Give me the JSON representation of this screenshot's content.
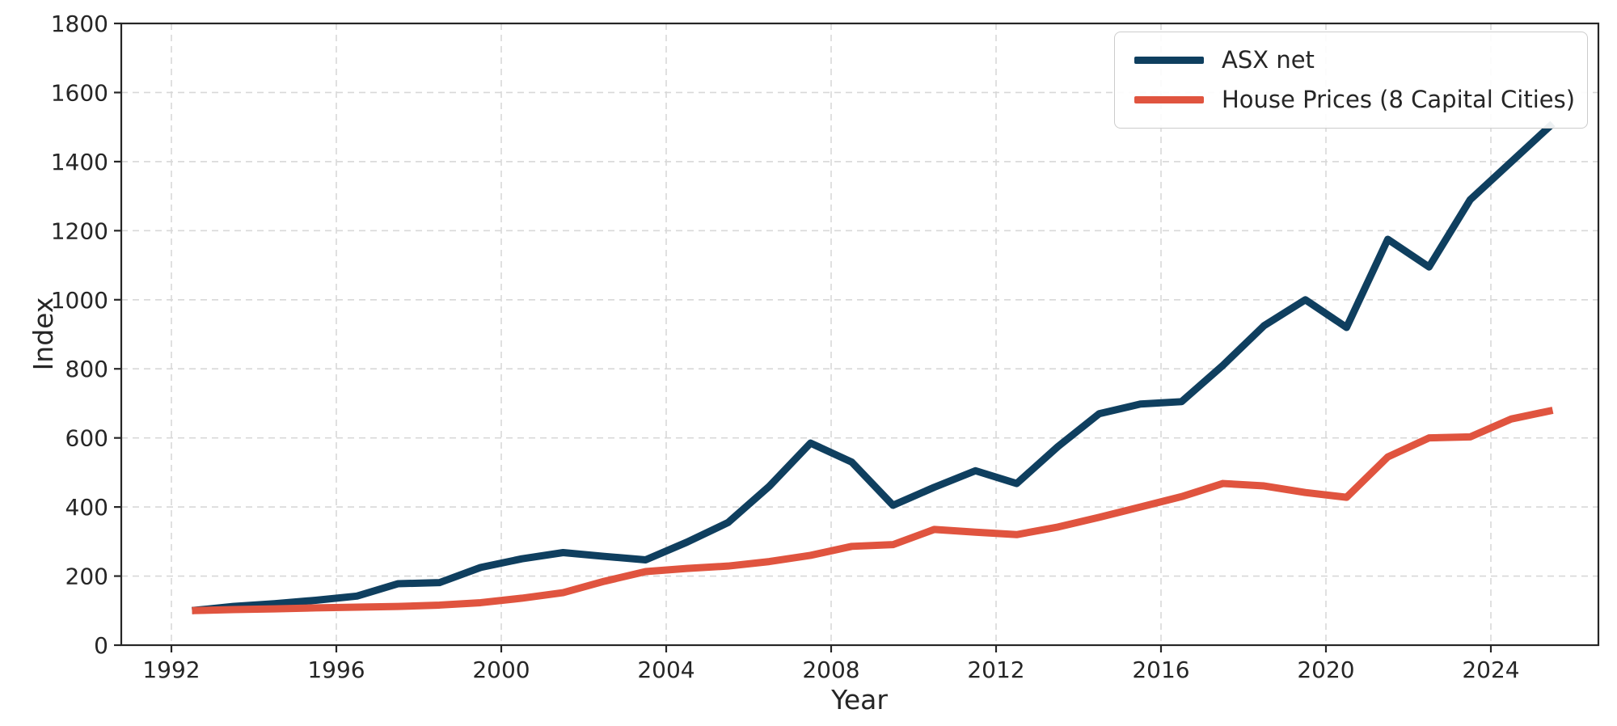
{
  "figure": {
    "background": "#ffffff",
    "grid_color": "#d8d8d8",
    "spine_color": "#262626",
    "text_color": "#262626"
  },
  "axes": {
    "x_title": "Year",
    "y_title": "Index",
    "x_tick_labels": [
      "1992",
      "1996",
      "2000",
      "2004",
      "2008",
      "2012",
      "2016",
      "2020",
      "2024"
    ],
    "y_tick_labels": [
      "0",
      "200",
      "400",
      "600",
      "800",
      "1000",
      "1200",
      "1400",
      "1600",
      "1800"
    ]
  },
  "legend": {
    "entries": [
      {
        "label": "ASX net",
        "color": "#0f3f5f"
      },
      {
        "label": "House Prices (8 Capital Cities)",
        "color": "#e0543f"
      }
    ]
  },
  "chart_data": {
    "type": "line",
    "title": "",
    "xlabel": "Year",
    "ylabel": "Index",
    "xlim": [
      1990.8,
      2026.6
    ],
    "ylim": [
      0,
      1800
    ],
    "x_ticks": [
      1992,
      1996,
      2000,
      2004,
      2008,
      2012,
      2016,
      2020,
      2024
    ],
    "y_ticks": [
      0,
      200,
      400,
      600,
      800,
      1000,
      1200,
      1400,
      1600,
      1800
    ],
    "grid": true,
    "legend_position": "upper right",
    "x": [
      1992.5,
      1993.5,
      1994.5,
      1995.5,
      1996.5,
      1997.5,
      1998.5,
      1999.5,
      2000.5,
      2001.5,
      2002.5,
      2003.5,
      2004.5,
      2005.5,
      2006.5,
      2007.5,
      2008.5,
      2009.5,
      2010.5,
      2011.5,
      2012.5,
      2013.5,
      2014.5,
      2015.5,
      2016.5,
      2017.5,
      2018.5,
      2019.5,
      2020.5,
      2021.5,
      2022.5,
      2023.5,
      2024.5,
      2025.5
    ],
    "series": [
      {
        "name": "ASX net",
        "color": "#0f3f5f",
        "values": [
          100,
          112,
          120,
          130,
          142,
          178,
          181,
          225,
          250,
          268,
          257,
          247,
          298,
          355,
          460,
          585,
          530,
          405,
          457,
          505,
          468,
          575,
          670,
          698,
          705,
          810,
          925,
          1000,
          920,
          1175,
          1095,
          1290,
          1400,
          1510
        ]
      },
      {
        "name": "House Prices (8 Capital Cities)",
        "color": "#e0543f",
        "values": [
          100,
          103,
          105,
          108,
          110,
          112,
          116,
          123,
          136,
          152,
          185,
          213,
          222,
          229,
          242,
          260,
          286,
          291,
          335,
          327,
          320,
          342,
          370,
          400,
          430,
          468,
          461,
          442,
          428,
          545,
          600,
          603,
          655,
          680
        ]
      }
    ]
  }
}
